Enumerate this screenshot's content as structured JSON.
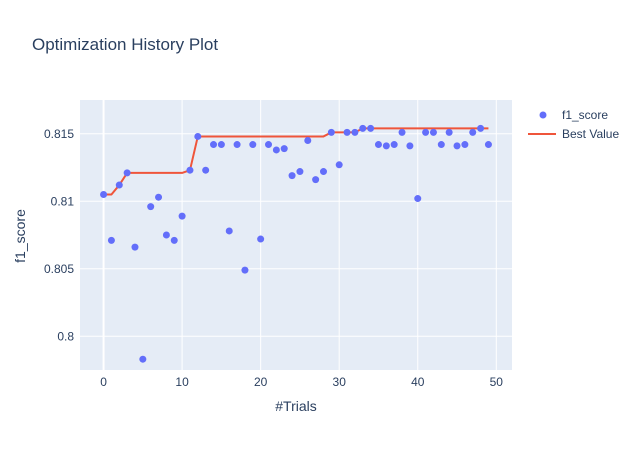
{
  "chart_data": {
    "type": "scatter",
    "title": "Optimization History Plot",
    "xlabel": "#Trials",
    "ylabel": "f1_score",
    "xlim": [
      -3,
      52
    ],
    "ylim": [
      0.7975,
      0.8175
    ],
    "xticks": [
      0,
      10,
      20,
      30,
      40,
      50
    ],
    "xtick_labels": [
      "0",
      "10",
      "20",
      "30",
      "40",
      "50"
    ],
    "yticks": [
      0.8,
      0.805,
      0.81,
      0.815
    ],
    "ytick_labels": [
      "0.8",
      "0.805",
      "0.81",
      "0.815"
    ],
    "grid": true,
    "legend_position": "top-right",
    "colors": {
      "points": "#636efa",
      "best": "#ef553b",
      "grid": "#e5ecf6",
      "text": "#2a3f5f"
    },
    "series": [
      {
        "name": "f1_score",
        "mode": "markers",
        "x": [
          0,
          1,
          2,
          3,
          4,
          5,
          6,
          7,
          8,
          9,
          10,
          11,
          12,
          13,
          14,
          15,
          16,
          17,
          18,
          19,
          20,
          21,
          22,
          23,
          24,
          25,
          26,
          27,
          28,
          29,
          30,
          31,
          32,
          33,
          34,
          35,
          36,
          37,
          38,
          39,
          40,
          41,
          42,
          43,
          44,
          45,
          46,
          47,
          48,
          49
        ],
        "y": [
          0.8105,
          0.8071,
          0.8112,
          0.8121,
          0.8066,
          0.7983,
          0.8096,
          0.8103,
          0.8075,
          0.8071,
          0.8089,
          0.8123,
          0.8148,
          0.8123,
          0.8142,
          0.8142,
          0.8078,
          0.8142,
          0.8049,
          0.8142,
          0.8072,
          0.8142,
          0.8138,
          0.8139,
          0.8119,
          0.8122,
          0.8145,
          0.8116,
          0.8122,
          0.8151,
          0.8127,
          0.8151,
          0.8151,
          0.8154,
          0.8154,
          0.8142,
          0.8141,
          0.8142,
          0.8151,
          0.8141,
          0.8102,
          0.8151,
          0.8151,
          0.8142,
          0.8151,
          0.8141,
          0.8142,
          0.8151,
          0.8154,
          0.8142
        ]
      },
      {
        "name": "Best Value",
        "mode": "lines",
        "x": [
          0,
          1,
          2,
          3,
          4,
          5,
          6,
          7,
          8,
          9,
          10,
          11,
          12,
          13,
          14,
          15,
          16,
          17,
          18,
          19,
          20,
          21,
          22,
          23,
          24,
          25,
          26,
          27,
          28,
          29,
          30,
          31,
          32,
          33,
          34,
          35,
          36,
          37,
          38,
          39,
          40,
          41,
          42,
          43,
          44,
          45,
          46,
          47,
          48,
          49
        ],
        "y": [
          0.8105,
          0.8105,
          0.8112,
          0.8121,
          0.8121,
          0.8121,
          0.8121,
          0.8121,
          0.8121,
          0.8121,
          0.8121,
          0.8123,
          0.8148,
          0.8148,
          0.8148,
          0.8148,
          0.8148,
          0.8148,
          0.8148,
          0.8148,
          0.8148,
          0.8148,
          0.8148,
          0.8148,
          0.8148,
          0.8148,
          0.8148,
          0.8148,
          0.8148,
          0.8151,
          0.8151,
          0.8151,
          0.8151,
          0.8154,
          0.8154,
          0.8154,
          0.8154,
          0.8154,
          0.8154,
          0.8154,
          0.8154,
          0.8154,
          0.8154,
          0.8154,
          0.8154,
          0.8154,
          0.8154,
          0.8154,
          0.8154,
          0.8154
        ]
      }
    ]
  }
}
